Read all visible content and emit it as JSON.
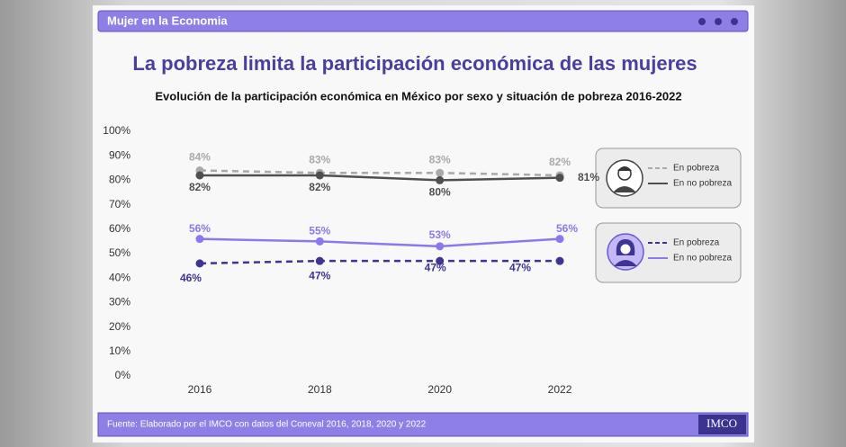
{
  "header": {
    "title": "Mujer en la Economia"
  },
  "chart_data": {
    "type": "line",
    "title": "La pobreza limita la participación económica de las mujeres",
    "subtitle": "Evolución de la participación económica en México por sexo y situación de pobreza 2016-2022",
    "categories": [
      "2016",
      "2018",
      "2020",
      "2022"
    ],
    "ylim": [
      0,
      100
    ],
    "yticks": [
      {
        "value": 0,
        "label": "0%"
      },
      {
        "value": 10,
        "label": "10%"
      },
      {
        "value": 20,
        "label": "20%"
      },
      {
        "value": 30,
        "label": "30%"
      },
      {
        "value": 40,
        "label": "40%"
      },
      {
        "value": 50,
        "label": "50%"
      },
      {
        "value": 60,
        "label": "60%"
      },
      {
        "value": 70,
        "label": "70%"
      },
      {
        "value": 80,
        "label": "80%"
      },
      {
        "value": 90,
        "label": "90%"
      },
      {
        "value": 100,
        "label": "100%"
      }
    ],
    "series": [
      {
        "name": "En pobreza",
        "color": "#a9a9a9",
        "line_style": "dashed",
        "values": [
          84,
          83,
          83,
          82
        ],
        "value_labels": [
          "84%",
          "83%",
          "83%",
          "82%"
        ]
      },
      {
        "name": "En no pobreza",
        "color": "#4f4f4f",
        "line_style": "solid",
        "values": [
          82,
          82,
          80,
          81
        ],
        "value_labels": [
          "82%",
          "82%",
          "80%",
          "81%"
        ]
      },
      {
        "name": "En pobreza",
        "color": "#3e3592",
        "line_style": "dashed",
        "values": [
          46,
          47,
          47,
          47
        ],
        "value_labels": [
          "46%",
          "47%",
          "47%",
          "47%"
        ]
      },
      {
        "name": "En no pobreza",
        "color": "#8b78ec",
        "line_style": "solid",
        "values": [
          56,
          55,
          53,
          56
        ],
        "value_labels": [
          "56%",
          "55%",
          "53%",
          "56%"
        ]
      }
    ]
  },
  "footer": {
    "source": "Fuente:  Elaborado por el IMCO con datos del Coneval 2016, 2018, 2020 y 2022",
    "logo": "IMCO"
  }
}
